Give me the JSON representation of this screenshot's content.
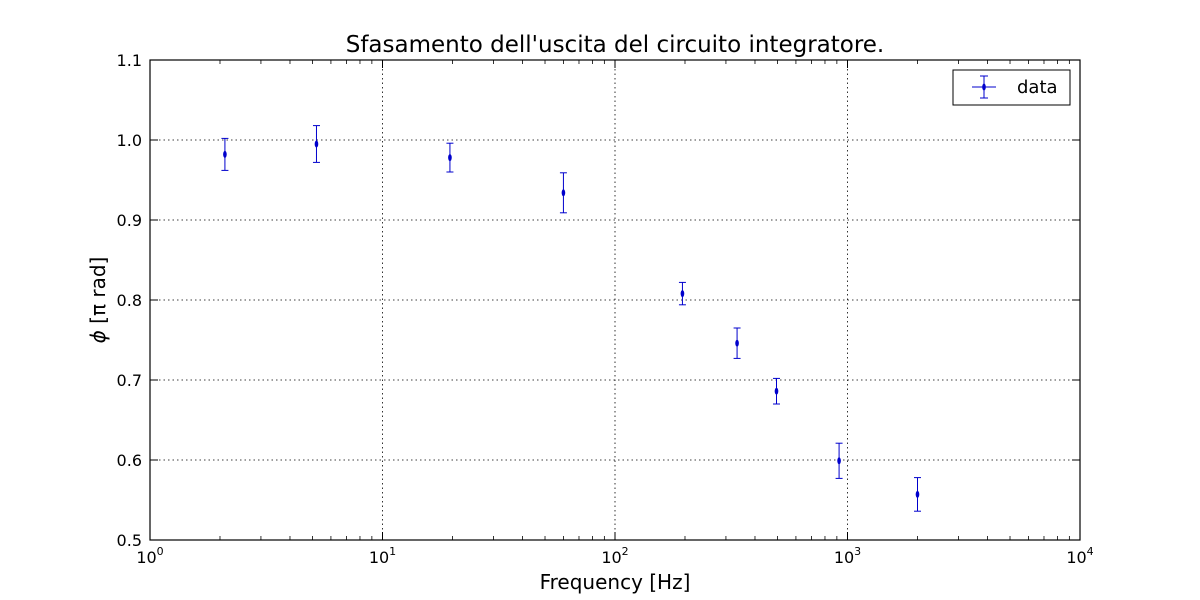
{
  "chart_data": {
    "type": "scatter",
    "title": "Sfasamento dell'uscita del circuito integratore.",
    "xlabel": "Frequency [Hz]",
    "ylabel_symbol": "ϕ",
    "ylabel_rest": "[π rad]",
    "xscale": "log",
    "xlim": [
      1,
      10000
    ],
    "ylim": [
      0.5,
      1.1
    ],
    "grid": true,
    "legend_position": "top-right",
    "xticks": [
      {
        "value": 1,
        "base": "10",
        "exp": "0"
      },
      {
        "value": 10,
        "base": "10",
        "exp": "1"
      },
      {
        "value": 100,
        "base": "10",
        "exp": "2"
      },
      {
        "value": 1000,
        "base": "10",
        "exp": "3"
      },
      {
        "value": 10000,
        "base": "10",
        "exp": "4"
      }
    ],
    "yticks": [
      {
        "value": 0.5,
        "label": "0.5"
      },
      {
        "value": 0.6,
        "label": "0.6"
      },
      {
        "value": 0.7,
        "label": "0.7"
      },
      {
        "value": 0.8,
        "label": "0.8"
      },
      {
        "value": 0.9,
        "label": "0.9"
      },
      {
        "value": 1.0,
        "label": "1.0"
      },
      {
        "value": 1.1,
        "label": "1.1"
      }
    ],
    "series": [
      {
        "name": "data",
        "color": "#0000cc",
        "points": [
          {
            "x": 2.1,
            "y": 0.982,
            "yerr": 0.02
          },
          {
            "x": 5.2,
            "y": 0.995,
            "yerr": 0.023
          },
          {
            "x": 19.5,
            "y": 0.978,
            "yerr": 0.018
          },
          {
            "x": 60,
            "y": 0.934,
            "yerr": 0.025
          },
          {
            "x": 195,
            "y": 0.808,
            "yerr": 0.014
          },
          {
            "x": 335,
            "y": 0.746,
            "yerr": 0.019
          },
          {
            "x": 495,
            "y": 0.686,
            "yerr": 0.016
          },
          {
            "x": 920,
            "y": 0.599,
            "yerr": 0.022
          },
          {
            "x": 2000,
            "y": 0.557,
            "yerr": 0.021
          }
        ]
      }
    ]
  }
}
